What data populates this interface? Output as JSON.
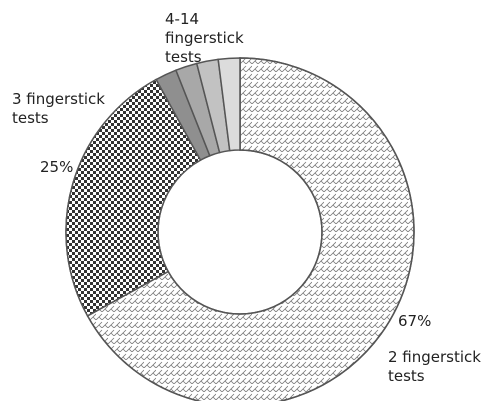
{
  "chart_data": {
    "type": "donut",
    "categories": [
      "2 fingerstick tests",
      "3 fingerstick tests",
      null,
      null,
      null,
      null
    ],
    "values": [
      67,
      25,
      2,
      2,
      2,
      2
    ],
    "value_labels": [
      "67%",
      "25%",
      null,
      null,
      null,
      null
    ],
    "colors": [
      "#ffffff",
      "#ffffff",
      "#8f8f8f",
      "#a8a8a8",
      "#c2c2c2",
      "#dcdcdc"
    ],
    "annotations": [
      "4-14 fingerstick tests"
    ]
  }
}
